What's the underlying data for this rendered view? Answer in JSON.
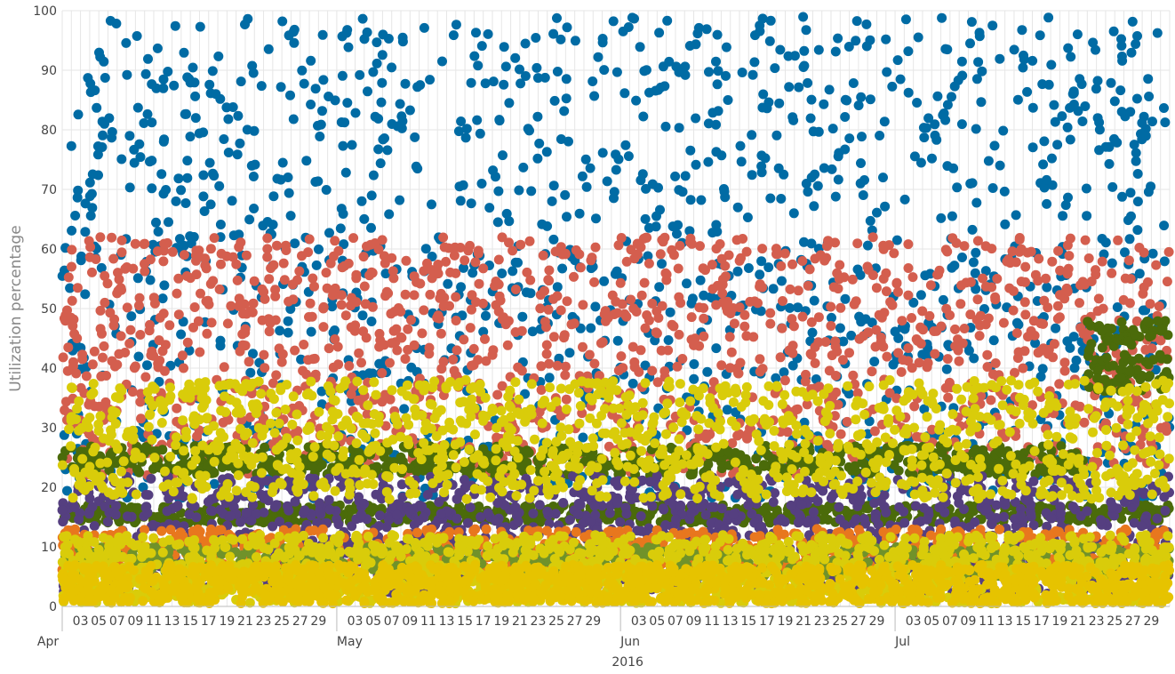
{
  "chart_data": {
    "type": "scatter",
    "ylabel": "Utilization percentage",
    "ylim": [
      0,
      100
    ],
    "yticks": [
      "0",
      "10",
      "20",
      "30",
      "40",
      "50",
      "60",
      "70",
      "80",
      "90",
      "100"
    ],
    "xlim": [
      "2016-04-01",
      "2016-07-31"
    ],
    "x_day_ticks": [
      {
        "date": "2016-04-03",
        "label": "03"
      },
      {
        "date": "2016-04-05",
        "label": "05"
      },
      {
        "date": "2016-04-07",
        "label": "07"
      },
      {
        "date": "2016-04-09",
        "label": "09"
      },
      {
        "date": "2016-04-11",
        "label": "11"
      },
      {
        "date": "2016-04-13",
        "label": "13"
      },
      {
        "date": "2016-04-15",
        "label": "15"
      },
      {
        "date": "2016-04-17",
        "label": "17"
      },
      {
        "date": "2016-04-19",
        "label": "19"
      },
      {
        "date": "2016-04-21",
        "label": "21"
      },
      {
        "date": "2016-04-23",
        "label": "23"
      },
      {
        "date": "2016-04-25",
        "label": "25"
      },
      {
        "date": "2016-04-27",
        "label": "27"
      },
      {
        "date": "2016-04-29",
        "label": "29"
      },
      {
        "date": "2016-05-03",
        "label": "03"
      },
      {
        "date": "2016-05-05",
        "label": "05"
      },
      {
        "date": "2016-05-07",
        "label": "07"
      },
      {
        "date": "2016-05-09",
        "label": "09"
      },
      {
        "date": "2016-05-11",
        "label": "11"
      },
      {
        "date": "2016-05-13",
        "label": "13"
      },
      {
        "date": "2016-05-15",
        "label": "15"
      },
      {
        "date": "2016-05-17",
        "label": "17"
      },
      {
        "date": "2016-05-19",
        "label": "19"
      },
      {
        "date": "2016-05-21",
        "label": "21"
      },
      {
        "date": "2016-05-23",
        "label": "23"
      },
      {
        "date": "2016-05-25",
        "label": "25"
      },
      {
        "date": "2016-05-27",
        "label": "27"
      },
      {
        "date": "2016-05-29",
        "label": "29"
      },
      {
        "date": "2016-06-03",
        "label": "03"
      },
      {
        "date": "2016-06-05",
        "label": "05"
      },
      {
        "date": "2016-06-07",
        "label": "07"
      },
      {
        "date": "2016-06-09",
        "label": "09"
      },
      {
        "date": "2016-06-11",
        "label": "11"
      },
      {
        "date": "2016-06-13",
        "label": "13"
      },
      {
        "date": "2016-06-15",
        "label": "15"
      },
      {
        "date": "2016-06-17",
        "label": "17"
      },
      {
        "date": "2016-06-19",
        "label": "19"
      },
      {
        "date": "2016-06-21",
        "label": "21"
      },
      {
        "date": "2016-06-23",
        "label": "23"
      },
      {
        "date": "2016-06-25",
        "label": "25"
      },
      {
        "date": "2016-06-27",
        "label": "27"
      },
      {
        "date": "2016-06-29",
        "label": "29"
      },
      {
        "date": "2016-07-03",
        "label": "03"
      },
      {
        "date": "2016-07-05",
        "label": "05"
      },
      {
        "date": "2016-07-07",
        "label": "07"
      },
      {
        "date": "2016-07-09",
        "label": "09"
      },
      {
        "date": "2016-07-11",
        "label": "11"
      },
      {
        "date": "2016-07-13",
        "label": "13"
      },
      {
        "date": "2016-07-15",
        "label": "15"
      },
      {
        "date": "2016-07-17",
        "label": "17"
      },
      {
        "date": "2016-07-19",
        "label": "19"
      },
      {
        "date": "2016-07-21",
        "label": "21"
      },
      {
        "date": "2016-07-23",
        "label": "23"
      },
      {
        "date": "2016-07-25",
        "label": "25"
      },
      {
        "date": "2016-07-27",
        "label": "27"
      },
      {
        "date": "2016-07-29",
        "label": "29"
      }
    ],
    "x_month_ticks": [
      {
        "date": "2016-04-01",
        "label": "Apr"
      },
      {
        "date": "2016-05-01",
        "label": "May"
      },
      {
        "date": "2016-06-01",
        "label": "Jun"
      },
      {
        "date": "2016-07-01",
        "label": "Jul"
      }
    ],
    "x_year_label": {
      "date": "2016-06-01",
      "label": "2016"
    },
    "grid": true,
    "legend": "none",
    "series": [
      {
        "color": "#006ba4",
        "bands": [
          {
            "min": 18,
            "max": 99,
            "density": 1.0
          }
        ]
      },
      {
        "color": "#d45e4e",
        "bands": [
          {
            "min": 22,
            "max": 62,
            "density": 1.0
          }
        ]
      },
      {
        "color": "#4b6b0a",
        "bands": [
          {
            "from": "2016-04-01",
            "to": "2016-07-22",
            "min": 22,
            "max": 27,
            "density": 0.5
          },
          {
            "from": "2016-04-01",
            "to": "2016-07-31",
            "min": 14,
            "max": 17,
            "density": 0.5
          },
          {
            "from": "2016-07-22",
            "to": "2016-07-31",
            "min": 36,
            "max": 48,
            "density": 1.0
          }
        ]
      },
      {
        "color": "#553f80",
        "bands": [
          {
            "min": 2,
            "max": 22,
            "density": 1.0
          }
        ]
      },
      {
        "color": "#e8771e",
        "bands": [
          {
            "min": 6,
            "max": 13,
            "density": 0.5
          }
        ]
      },
      {
        "color": "#70922a",
        "bands": [
          {
            "min": 5,
            "max": 10,
            "density": 0.5
          }
        ]
      },
      {
        "color": "#d9cc0a",
        "bands": [
          {
            "min": 18,
            "max": 38,
            "density": 0.8
          },
          {
            "min": 0.5,
            "max": 12,
            "density": 1.0
          }
        ]
      },
      {
        "color": "#e6c300",
        "bands": [
          {
            "min": 0.5,
            "max": 7,
            "density": 1.0
          }
        ]
      }
    ]
  }
}
